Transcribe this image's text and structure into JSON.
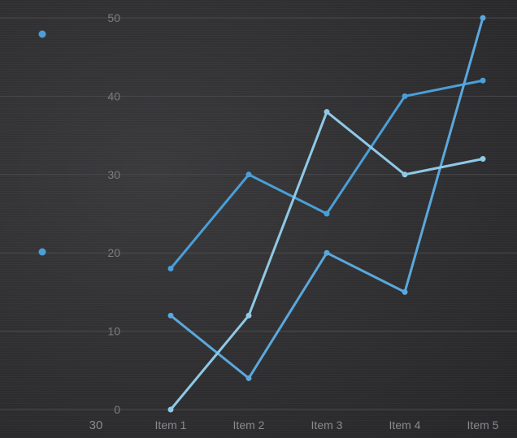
{
  "chart_data": {
    "type": "line",
    "categories": [
      "Item 1",
      "Item 2",
      "Item 3",
      "Item 4",
      "Item 5"
    ],
    "series": [
      {
        "values": [
          18,
          30,
          25,
          40,
          42
        ],
        "color": "#4a9fd8"
      },
      {
        "values": [
          12,
          4,
          20,
          15,
          50
        ],
        "color": "#5aa8dd"
      },
      {
        "values": [
          0,
          12,
          38,
          30,
          32
        ],
        "color": "#8fc9e6"
      }
    ],
    "yticks": [
      0,
      10,
      20,
      30,
      40,
      50
    ],
    "ylim": [
      0,
      50
    ],
    "extra_label": "30",
    "grid": true,
    "legend_dots": [
      {
        "color": "#4a9fd8"
      },
      {
        "color": "#4a9fd8"
      }
    ]
  }
}
